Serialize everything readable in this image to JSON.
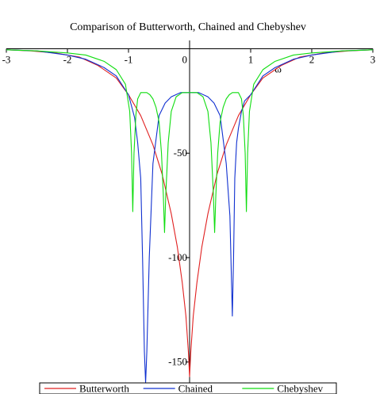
{
  "chart_data": {
    "type": "line",
    "title": "Comparison of Butterworth, Chained and Chebyshev",
    "xlabel": "ω",
    "ylabel": "",
    "xlim": [
      -3,
      3
    ],
    "ylim": [
      -160,
      4
    ],
    "x_ticks": [
      -3,
      -2,
      -1,
      0,
      1,
      2,
      3
    ],
    "y_ticks": [
      -50,
      -100,
      -150
    ],
    "grid": false,
    "legend_position": "bottom",
    "series": [
      {
        "name": "Butterworth",
        "color": "#e02020",
        "x": [
          -3.0,
          -2.6,
          -2.2,
          -1.8,
          -1.5,
          -1.2,
          -1.0,
          -0.8,
          -0.6,
          -0.45,
          -0.3,
          -0.2,
          -0.12,
          -0.06,
          -0.02,
          0.0,
          0.02,
          0.06,
          0.12,
          0.2,
          0.3,
          0.45,
          0.6,
          0.8,
          1.0,
          1.2,
          1.5,
          1.8,
          2.2,
          2.6,
          3.0
        ],
        "y": [
          -0.5,
          -1,
          -2,
          -4,
          -8,
          -14,
          -22,
          -32,
          -46,
          -60,
          -79,
          -95,
          -112,
          -128,
          -145,
          -157,
          -145,
          -128,
          -112,
          -95,
          -79,
          -60,
          -46,
          -32,
          -22,
          -14,
          -8,
          -4,
          -2,
          -1,
          -0.5
        ]
      },
      {
        "name": "Chained",
        "color": "#1030d0",
        "x": [
          -3.0,
          -2.5,
          -2.0,
          -1.7,
          -1.4,
          -1.2,
          -1.0,
          -0.9,
          -0.85,
          -0.8,
          -0.77,
          -0.74,
          -0.72,
          -0.7,
          -0.66,
          -0.6,
          -0.5,
          -0.4,
          -0.3,
          -0.15,
          0.0,
          0.15,
          0.3,
          0.4,
          0.5,
          0.6,
          0.66,
          0.7,
          0.72,
          0.74,
          0.77,
          0.8,
          0.85,
          0.9,
          1.0,
          1.2,
          1.4,
          1.7,
          2.0,
          2.5,
          3.0
        ],
        "y": [
          -0.5,
          -1,
          -3,
          -5,
          -9,
          -13,
          -22,
          -33,
          -45,
          -62,
          -100,
          -145,
          -160,
          -145,
          -100,
          -55,
          -32,
          -26,
          -23,
          -21,
          -21,
          -21,
          -23,
          -26,
          -32,
          -55,
          -80,
          -128,
          -100,
          -62,
          -45,
          -38,
          -30,
          -25,
          -22,
          -13,
          -9,
          -5,
          -3,
          -1,
          -0.5
        ]
      },
      {
        "name": "Chebyshev",
        "color": "#10dd10",
        "x": [
          -3.0,
          -2.5,
          -2.0,
          -1.7,
          -1.4,
          -1.2,
          -1.05,
          -0.98,
          -0.95,
          -0.93,
          -0.91,
          -0.88,
          -0.85,
          -0.8,
          -0.75,
          -0.7,
          -0.65,
          -0.6,
          -0.55,
          -0.5,
          -0.46,
          -0.43,
          -0.41,
          -0.39,
          -0.35,
          -0.3,
          -0.22,
          -0.12,
          0.0,
          0.12,
          0.22,
          0.3,
          0.35,
          0.39,
          0.41,
          0.43,
          0.46,
          0.5,
          0.55,
          0.6,
          0.65,
          0.7,
          0.75,
          0.8,
          0.85,
          0.88,
          0.91,
          0.93,
          0.95,
          0.98,
          1.05,
          1.2,
          1.4,
          1.7,
          2.0,
          2.5,
          3.0
        ],
        "y": [
          -0.5,
          -1,
          -2,
          -3,
          -6,
          -10,
          -17,
          -30,
          -50,
          -78,
          -50,
          -32,
          -24,
          -21,
          -21,
          -21,
          -22,
          -24,
          -28,
          -35,
          -50,
          -70,
          -88,
          -70,
          -45,
          -30,
          -23,
          -21,
          -21,
          -21,
          -23,
          -30,
          -45,
          -70,
          -88,
          -70,
          -50,
          -35,
          -28,
          -24,
          -22,
          -21,
          -21,
          -21,
          -24,
          -32,
          -50,
          -78,
          -50,
          -30,
          -17,
          -10,
          -6,
          -3,
          -2,
          -1,
          -0.5
        ]
      }
    ]
  }
}
